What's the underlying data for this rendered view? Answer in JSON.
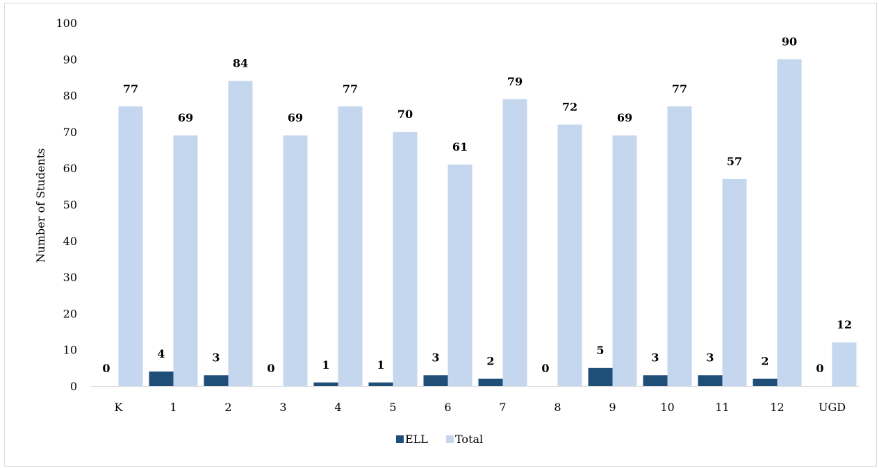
{
  "chart_data": {
    "type": "bar",
    "title": "",
    "xlabel": "",
    "ylabel": "Number of Students",
    "ylim": [
      0,
      100
    ],
    "yticks": [
      0,
      10,
      20,
      30,
      40,
      50,
      60,
      70,
      80,
      90,
      100
    ],
    "categories": [
      "K",
      "1",
      "2",
      "3",
      "4",
      "5",
      "6",
      "7",
      "8",
      "9",
      "10",
      "11",
      "12",
      "UGD"
    ],
    "series": [
      {
        "name": "ELL",
        "color": "#1f4e79",
        "values": [
          0,
          4,
          3,
          0,
          1,
          1,
          3,
          2,
          0,
          5,
          3,
          3,
          2,
          0
        ]
      },
      {
        "name": "Total",
        "color": "#c5d7ef",
        "values": [
          77,
          69,
          84,
          69,
          77,
          70,
          61,
          79,
          72,
          69,
          77,
          57,
          90,
          12
        ]
      }
    ],
    "grid": false,
    "data_labels": true,
    "legend_position": "bottom-center"
  }
}
